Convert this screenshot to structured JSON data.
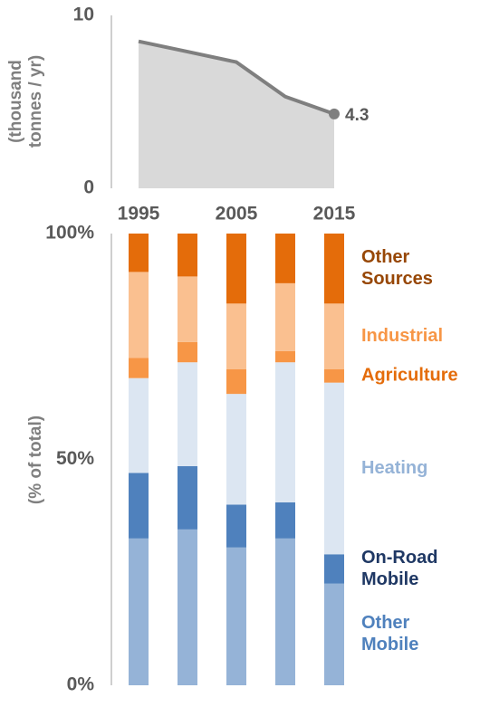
{
  "chart_data": [
    {
      "type": "area",
      "ylabel_lines": [
        "(thousand",
        "tonnes / yr)"
      ],
      "ylim": [
        0,
        10
      ],
      "yticks": [
        "0",
        "10"
      ],
      "x": [
        1995,
        2000,
        2005,
        2010,
        2015
      ],
      "xtick_labels": [
        "1995",
        "2005",
        "2015"
      ],
      "values": [
        8.5,
        7.9,
        7.3,
        5.3,
        4.3
      ],
      "end_label": "4.3",
      "colors": {
        "fill": "#d9d9d9",
        "line": "#7f7f7f"
      }
    },
    {
      "type": "bar",
      "stacked": true,
      "ylabel": "(% of total)",
      "yticks": [
        "0%",
        "50%",
        "100%"
      ],
      "ylim": [
        0,
        100
      ],
      "categories": [
        "1995",
        "2000",
        "2005",
        "2010",
        "2015"
      ],
      "series": [
        {
          "name": "Other Mobile",
          "lines": [
            "Other",
            "Mobile"
          ],
          "color": "#95b3d7",
          "label_color": "#4f81bd",
          "values": [
            32.5,
            34.5,
            30.5,
            32.5,
            22.5
          ]
        },
        {
          "name": "On-Road Mobile",
          "lines": [
            "On-Road",
            "Mobile"
          ],
          "color": "#4f81bd",
          "label_color": "#1f3864",
          "values": [
            14.5,
            14.0,
            9.5,
            8.0,
            6.5
          ]
        },
        {
          "name": "Heating",
          "lines": [
            "Heating"
          ],
          "color": "#dce6f2",
          "label_color": "#95b3d7",
          "values": [
            21.0,
            23.0,
            24.5,
            31.0,
            38.0
          ]
        },
        {
          "name": "Agriculture",
          "lines": [
            "Agriculture"
          ],
          "color": "#f79646",
          "label_color": "#e46c0a",
          "values": [
            4.5,
            4.5,
            5.5,
            2.5,
            3.0
          ]
        },
        {
          "name": "Industrial",
          "lines": [
            "Industrial"
          ],
          "color": "#fac090",
          "label_color": "#f79646",
          "values": [
            19.0,
            14.5,
            14.5,
            15.0,
            14.5
          ]
        },
        {
          "name": "Other Sources",
          "lines": [
            "Other",
            "Sources"
          ],
          "color": "#e46c0a",
          "label_color": "#974706",
          "values": [
            8.5,
            9.5,
            15.5,
            11.0,
            15.5
          ]
        }
      ]
    }
  ]
}
